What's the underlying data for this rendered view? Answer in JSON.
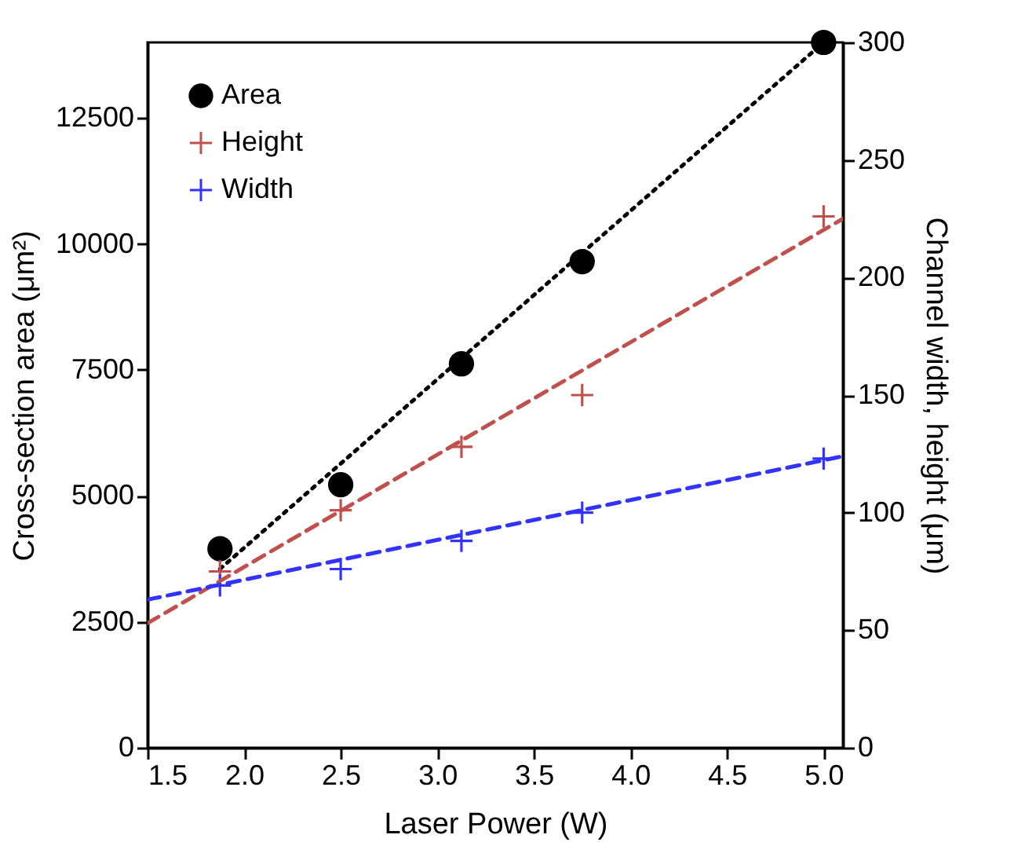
{
  "chart_data": {
    "type": "scatter",
    "xlabel": "Laser Power (W)",
    "ylabel": "Cross-section area (μm²)",
    "y2label": "Channel width, height (μm)",
    "xlim": [
      1.5,
      5.1
    ],
    "xticks": [
      1.5,
      {
        "value": 2,
        "label": "2.0"
      },
      2.5,
      {
        "value": 3,
        "label": "3.0"
      },
      3.5,
      {
        "value": 4,
        "label": "4.0"
      },
      4.5,
      {
        "value": 5,
        "label": "5.0"
      }
    ],
    "ylim": [
      0,
      14000
    ],
    "yticks": [
      0,
      2500,
      5000,
      7500,
      10000,
      12500
    ],
    "y2lim": [
      0,
      300
    ],
    "y2ticks": [
      0,
      50,
      100,
      150,
      200,
      250,
      300
    ],
    "grid": false,
    "legend": "top left",
    "series": [
      {
        "name": "Area",
        "marker": "circle",
        "color": "#000000",
        "x": [
          1.875,
          2.5,
          3.125,
          3.75,
          5.0
        ],
        "values": [
          3950,
          5220,
          7620,
          9650,
          14000
        ]
      },
      {
        "name": "Height",
        "marker": "cross",
        "color": "#c0504d",
        "axis": "y2",
        "x": [
          1.875,
          2.5,
          3.125,
          3.75,
          5.0
        ],
        "values": [
          75,
          101,
          128,
          150,
          226
        ]
      },
      {
        "name": "Width",
        "marker": "cross",
        "color": "#3333ff",
        "axis": "y2",
        "x": [
          1.875,
          2.5,
          3.125,
          3.75,
          5.0
        ],
        "values": [
          69,
          76,
          88,
          100,
          123
        ]
      },
      {
        "type": "line",
        "line_style": "dotted",
        "color": "#000000",
        "x": [
          1.875,
          5.0
        ],
        "values": [
          3550,
          14000
        ]
      },
      {
        "type": "line",
        "line_style": "dashed",
        "color": "#c0504d",
        "axis": "y2",
        "x": [
          1.5,
          5.1
        ],
        "values": [
          53,
          225
        ]
      },
      {
        "type": "line",
        "line_style": "dashed",
        "color": "#3333ff",
        "axis": "y2",
        "x": [
          1.5,
          5.1
        ],
        "values": [
          63,
          124
        ]
      }
    ]
  }
}
